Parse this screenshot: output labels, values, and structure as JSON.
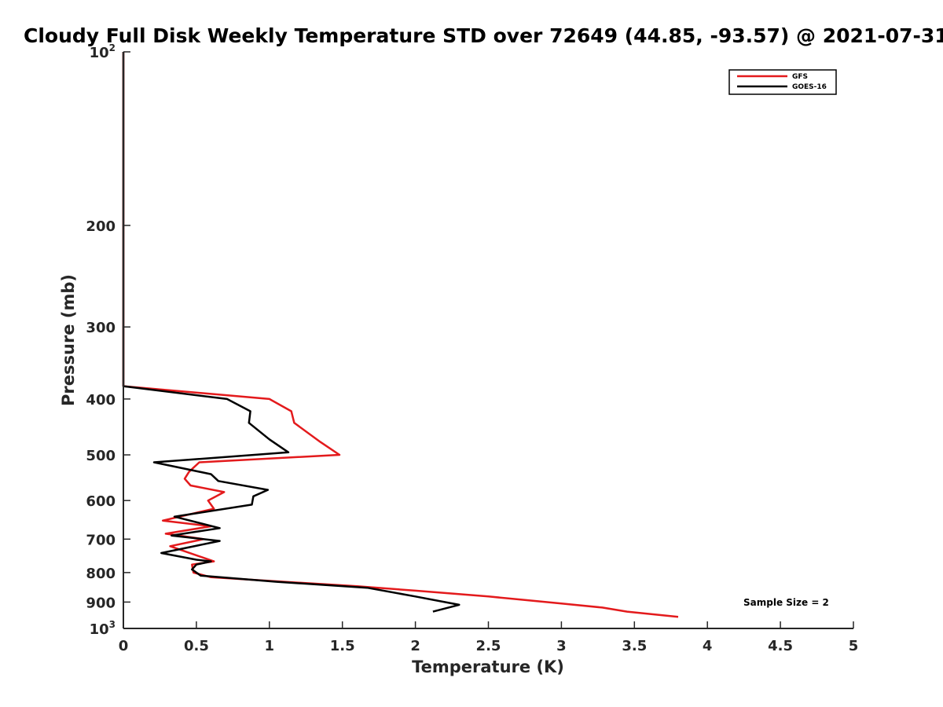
{
  "chart_data": {
    "type": "line",
    "title": "Cloudy Full Disk Weekly Temperature STD over 72649 (44.85, -93.57) @ 2021-07-31",
    "xlabel": "Temperature (K)",
    "ylabel": "Pressure (mb)",
    "xlim": [
      0,
      5
    ],
    "ylim": [
      100,
      1000
    ],
    "y_scale": "log",
    "y_reversed": true,
    "grid": false,
    "legend_position": "top-right",
    "x_ticks": [
      {
        "value": 0,
        "label": "0"
      },
      {
        "value": 0.5,
        "label": "0.5"
      },
      {
        "value": 1,
        "label": "1"
      },
      {
        "value": 1.5,
        "label": "1.5"
      },
      {
        "value": 2,
        "label": "2"
      },
      {
        "value": 2.5,
        "label": "2.5"
      },
      {
        "value": 3,
        "label": "3"
      },
      {
        "value": 3.5,
        "label": "3.5"
      },
      {
        "value": 4,
        "label": "4"
      },
      {
        "value": 4.5,
        "label": "4.5"
      },
      {
        "value": 5,
        "label": "5"
      }
    ],
    "y_ticks": [
      {
        "value": 100,
        "label": "10",
        "exp": "2"
      },
      {
        "value": 200,
        "label": "200",
        "exp": ""
      },
      {
        "value": 300,
        "label": "300",
        "exp": ""
      },
      {
        "value": 400,
        "label": "400",
        "exp": ""
      },
      {
        "value": 500,
        "label": "500",
        "exp": ""
      },
      {
        "value": 600,
        "label": "600",
        "exp": ""
      },
      {
        "value": 700,
        "label": "700",
        "exp": ""
      },
      {
        "value": 800,
        "label": "800",
        "exp": ""
      },
      {
        "value": 900,
        "label": "900",
        "exp": ""
      },
      {
        "value": 1000,
        "label": "10",
        "exp": "3"
      }
    ],
    "series": [
      {
        "name": "GFS",
        "color": "#e31a1c",
        "points": [
          [
            0,
            100
          ],
          [
            0,
            380
          ],
          [
            1.0,
            400
          ],
          [
            1.15,
            420
          ],
          [
            1.17,
            440
          ],
          [
            1.35,
            475
          ],
          [
            1.48,
            500
          ],
          [
            0.52,
            515
          ],
          [
            0.45,
            535
          ],
          [
            0.42,
            550
          ],
          [
            0.46,
            565
          ],
          [
            0.69,
            580
          ],
          [
            0.58,
            600
          ],
          [
            0.62,
            620
          ],
          [
            0.27,
            650
          ],
          [
            0.6,
            665
          ],
          [
            0.29,
            685
          ],
          [
            0.55,
            700
          ],
          [
            0.32,
            720
          ],
          [
            0.62,
            765
          ],
          [
            0.47,
            775
          ],
          [
            0.48,
            800
          ],
          [
            0.6,
            815
          ],
          [
            1.6,
            845
          ],
          [
            2.0,
            860
          ],
          [
            2.5,
            880
          ],
          [
            3.0,
            905
          ],
          [
            3.28,
            920
          ],
          [
            3.45,
            935
          ],
          [
            3.8,
            955
          ]
        ]
      },
      {
        "name": "GOES-16",
        "color": "#000000",
        "points": [
          [
            0,
            100
          ],
          [
            0,
            380
          ],
          [
            0.71,
            400
          ],
          [
            0.87,
            420
          ],
          [
            0.86,
            440
          ],
          [
            1.0,
            470
          ],
          [
            1.13,
            495
          ],
          [
            0.21,
            515
          ],
          [
            0.6,
            540
          ],
          [
            0.65,
            555
          ],
          [
            0.99,
            575
          ],
          [
            0.89,
            590
          ],
          [
            0.88,
            610
          ],
          [
            0.35,
            640
          ],
          [
            0.66,
            670
          ],
          [
            0.33,
            690
          ],
          [
            0.66,
            705
          ],
          [
            0.26,
            740
          ],
          [
            0.5,
            760
          ],
          [
            0.6,
            765
          ],
          [
            0.5,
            775
          ],
          [
            0.47,
            790
          ],
          [
            0.53,
            810
          ],
          [
            1.05,
            830
          ],
          [
            1.67,
            850
          ],
          [
            2.0,
            880
          ],
          [
            2.3,
            910
          ],
          [
            2.12,
            935
          ]
        ]
      }
    ],
    "annotation": "Sample Size = 2"
  }
}
